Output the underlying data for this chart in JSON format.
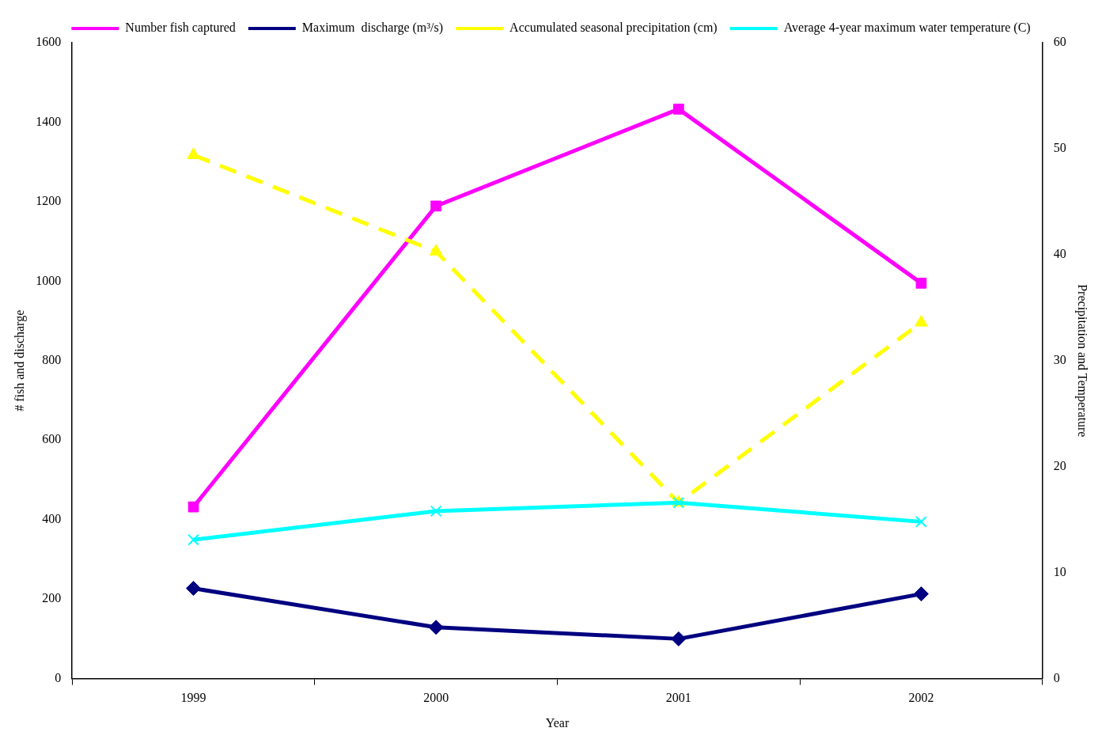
{
  "chart_data": {
    "type": "line",
    "xlabel": "Year",
    "ylabel": "# fish and discharge",
    "y2label": "Precipitation and Temperature",
    "categories": [
      "1999",
      "2000",
      "2001",
      "2002"
    ],
    "series": [
      {
        "name": "Number fish captured",
        "color": "#ff00ff",
        "values": [
          432,
          1189,
          1433,
          995
        ],
        "marker": "square",
        "line_style": "solid"
      },
      {
        "name": "Maximum  discharge (m³/s)",
        "color": "#000080",
        "values": [
          227,
          129,
          100,
          213
        ],
        "marker": "diamond",
        "line_style": "solid"
      },
      {
        "name": "Accumulated seasonal precipitation (cm)",
        "color": "#ffff00",
        "values": [
          49.4,
          40.3,
          16.6,
          33.6
        ],
        "axis": "y2",
        "marker": "triangle",
        "line_style": "dashed"
      },
      {
        "name": "Average 4-year maximum water temperature (C)",
        "color": "#00ffff",
        "values": [
          13.1,
          15.8,
          16.6,
          14.8
        ],
        "axis": "y2",
        "marker": "cross",
        "line_style": "solid"
      }
    ],
    "ylim": [
      0,
      1600
    ],
    "yticks": [
      0,
      200,
      400,
      600,
      800,
      1000,
      1200,
      1400,
      1600
    ],
    "y2lim": [
      0,
      60
    ],
    "y2ticks": [
      0,
      10,
      20,
      30,
      40,
      50,
      60
    ],
    "grid": false,
    "legend": "top"
  }
}
